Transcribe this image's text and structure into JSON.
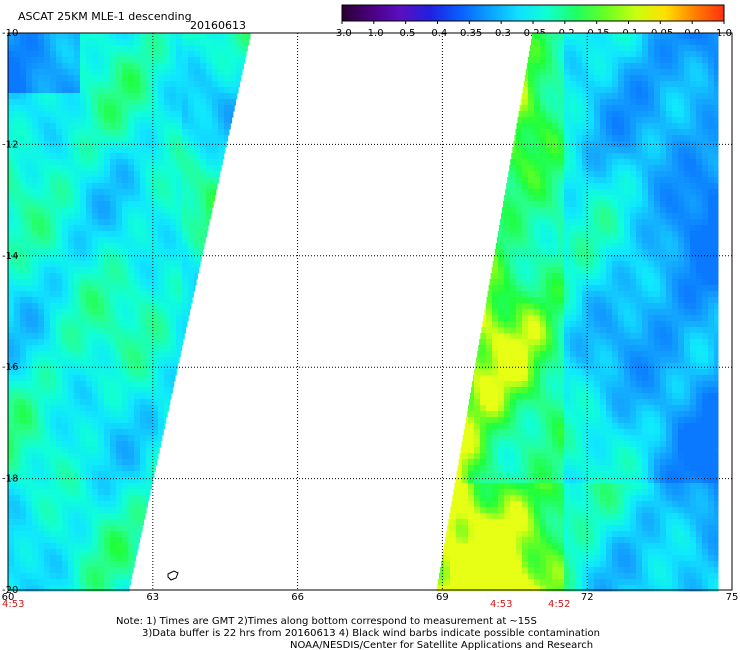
{
  "header": {
    "title": "ASCAT 25KM MLE-1 descending",
    "date": "20160613"
  },
  "colorbar": {
    "labels": [
      "-3.0",
      "-1.0",
      "-0.5",
      "-0.4",
      "-0.35",
      "-0.3",
      "-0.25",
      "-0.2",
      "-0.15",
      "-0.1",
      "-0.05",
      "0.0",
      "1.0"
    ],
    "colors": [
      "#2a0030",
      "#4a0080",
      "#5a10c0",
      "#2020e0",
      "#0a5cff",
      "#0aa0ff",
      "#10e0ff",
      "#10ffd0",
      "#20ff60",
      "#6aff20",
      "#c8ff10",
      "#ffe000",
      "#ff8000",
      "#ff3010"
    ]
  },
  "axes": {
    "lat_labels": [
      "-10",
      "-12",
      "-14",
      "-16",
      "-18",
      "-20"
    ],
    "lon_labels": [
      "60",
      "63",
      "66",
      "69",
      "72",
      "75"
    ]
  },
  "times": {
    "left": "4:53",
    "mid1": "4:53",
    "mid2": "4:52"
  },
  "notes": {
    "line1": "Note: 1) Times are GMT 2)Times along bottom correspond to measurement at ~15S",
    "line2": "3)Data buffer is 22 hrs from 20160613 4) Black wind barbs indicate possible contamination",
    "line3": "NOAA/NESDIS/Center for Satellite Applications and Research"
  }
}
